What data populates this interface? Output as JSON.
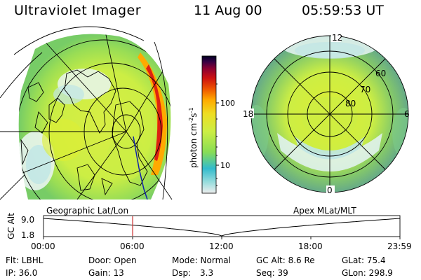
{
  "header": {
    "title": "Ultraviolet Imager",
    "date": "11 Aug 00",
    "time": "05:59:53 UT"
  },
  "left_panel": {
    "label": "Geographic Lat/Lon"
  },
  "right_panel": {
    "label": "Apex MLat/MLT",
    "mlt_labels": [
      "12",
      "18",
      "6",
      "0"
    ],
    "lat_labels": [
      "60",
      "70",
      "80"
    ]
  },
  "colorbar": {
    "unit": "photon cm",
    "unit_sup1": "-2",
    "unit_mid": "s",
    "unit_sup2": "-1",
    "ticks": [
      "100",
      "10"
    ],
    "scale": "log"
  },
  "timeline": {
    "ylabel": "GC Alt",
    "y_ticks": [
      "9.0",
      "1.8"
    ],
    "x_ticks": [
      "00:00",
      "06:00",
      "12:00",
      "18:00",
      "23:59"
    ],
    "current_time_hours": 6.0,
    "color_marker": "#cc3333"
  },
  "info": {
    "flt": "Flt: LBHL",
    "door": "Door: Open",
    "mode": "Mode: Normal",
    "gc_alt": "GC Alt: 8.6 Re",
    "glat": "GLat: 75.4",
    "ip": "IP: 36.0",
    "gain": "Gain: 13",
    "dsp_label": "Dsp:",
    "dsp_value": "3.3",
    "seq": "Seq: 39",
    "glon": "GLon: 298.9"
  },
  "colors": {
    "cb_stops": [
      "#eeeeee",
      "#88dddd",
      "#22bbcc",
      "#88dd55",
      "#ccee44",
      "#eedd22",
      "#ffaa00",
      "#ee5500",
      "#cc1111",
      "#880033",
      "#330044",
      "#000033"
    ]
  }
}
